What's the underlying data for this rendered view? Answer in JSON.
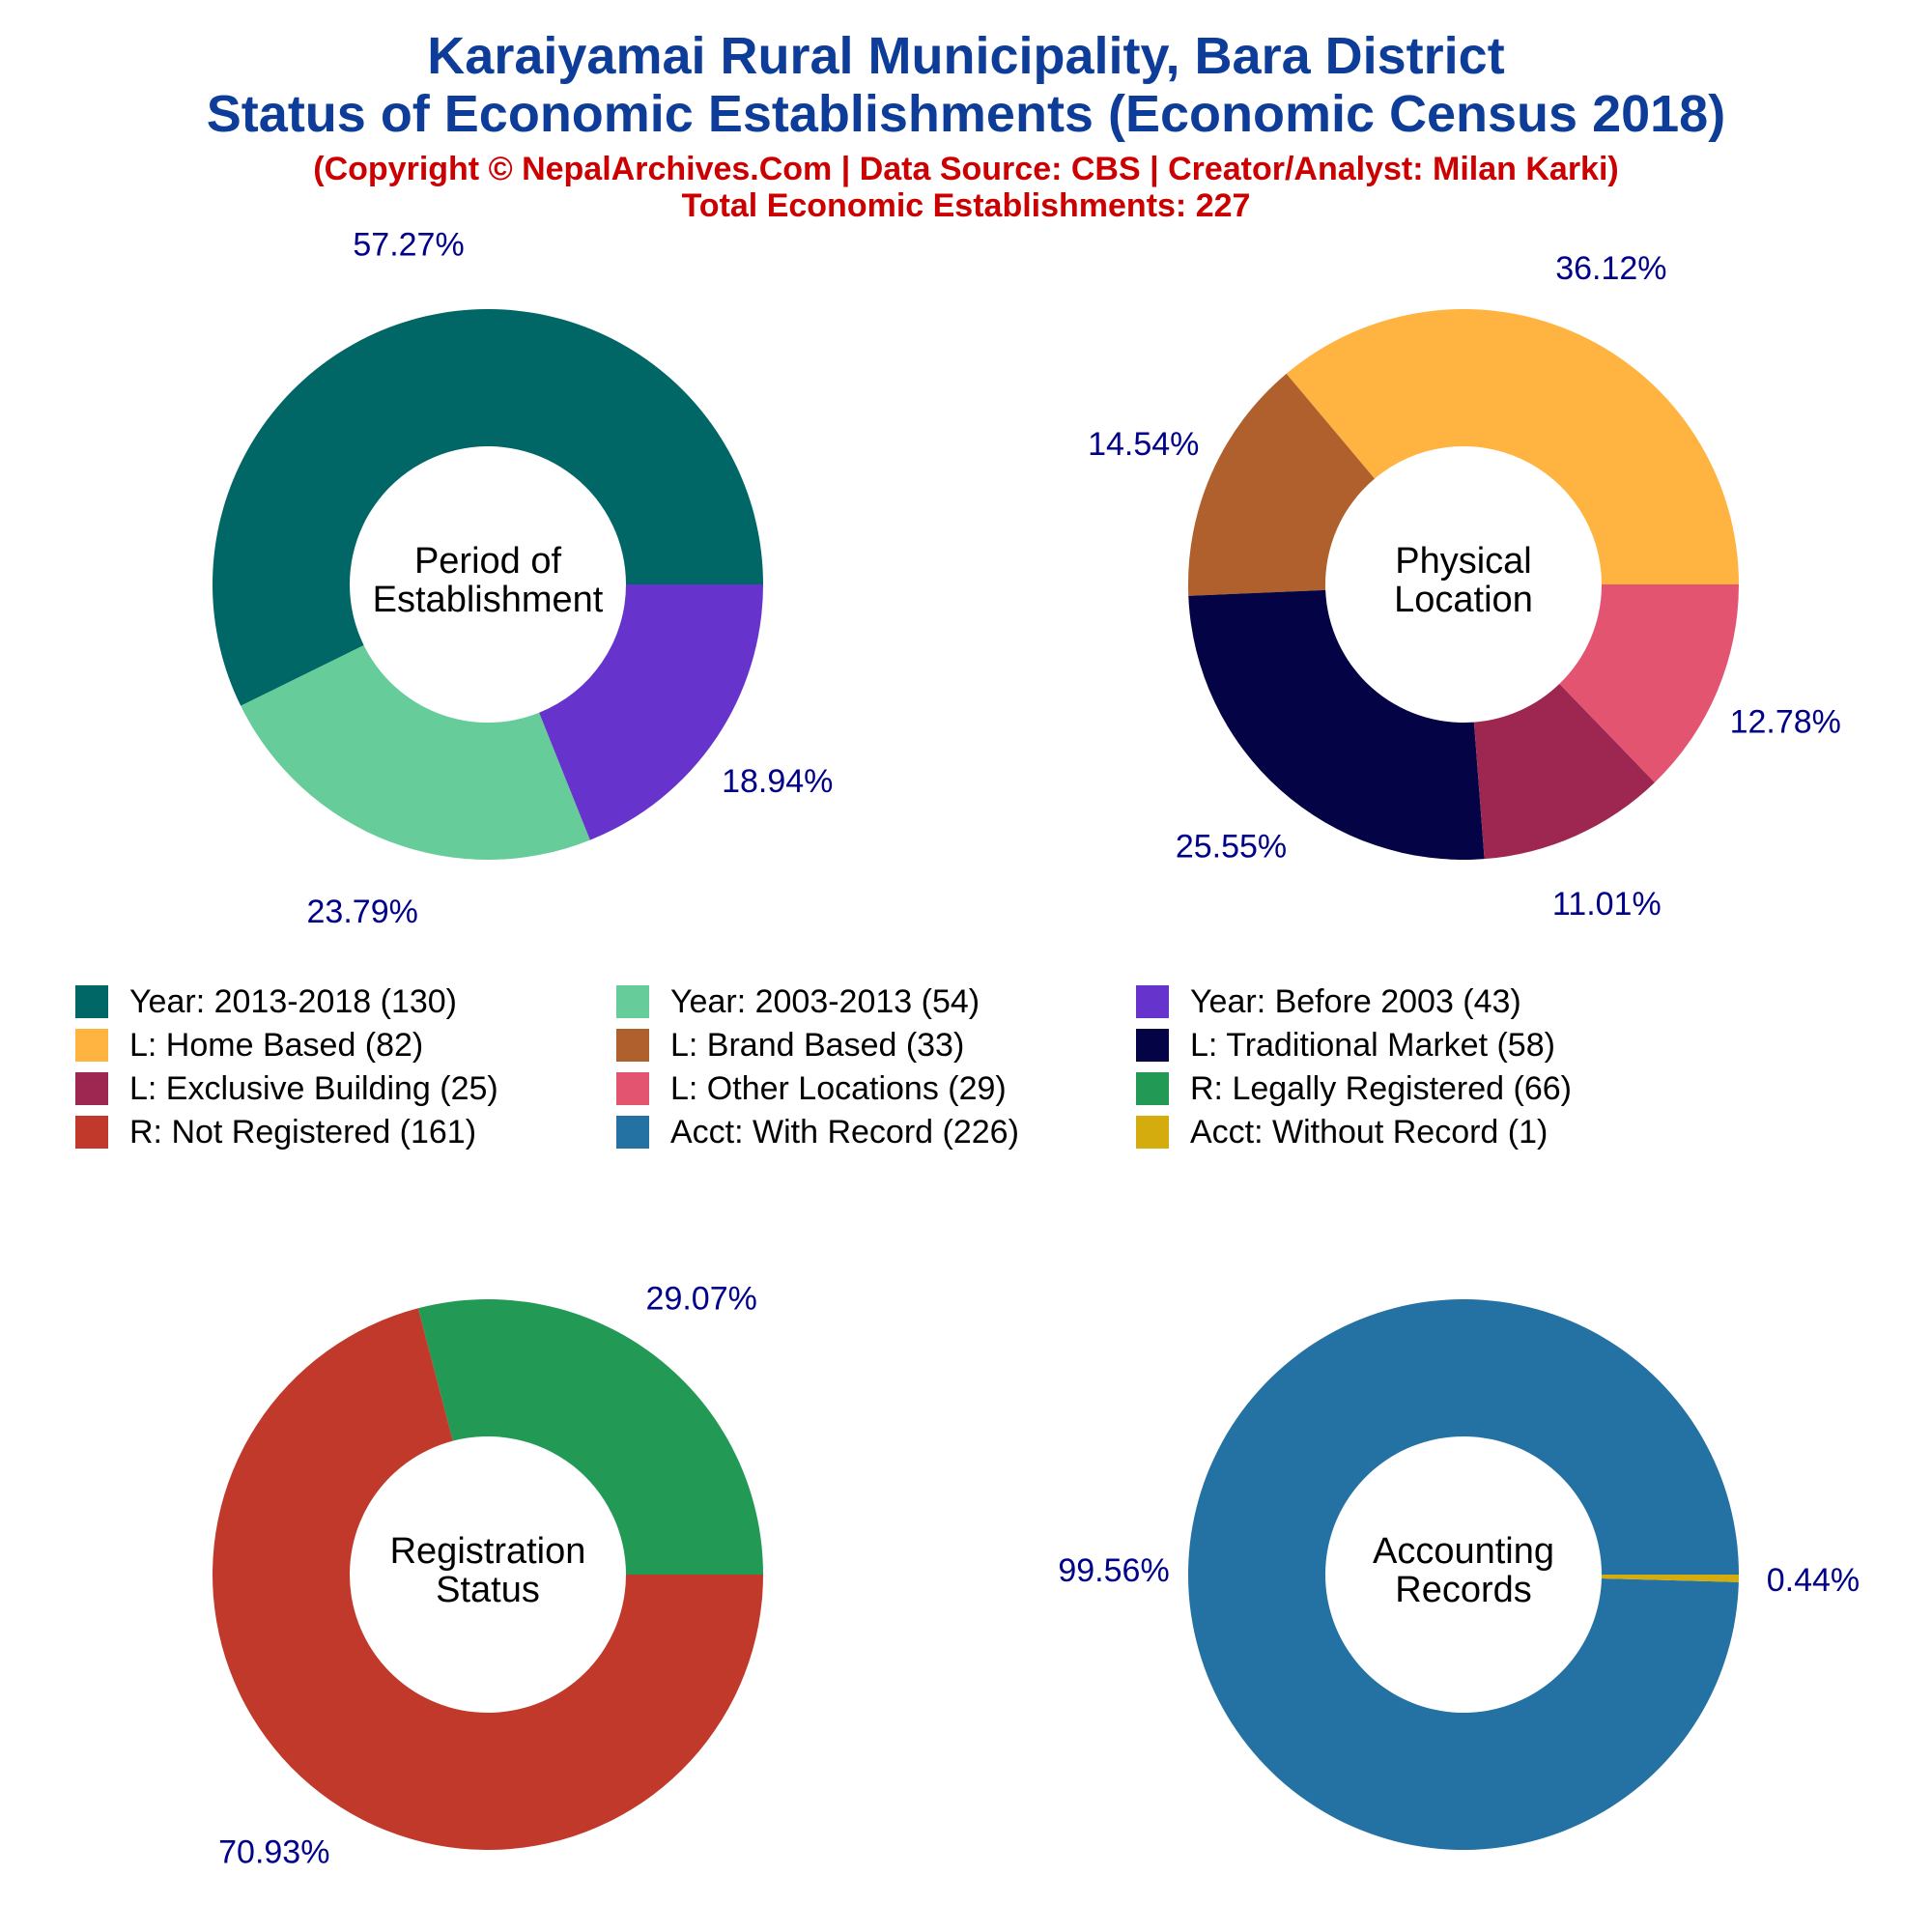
{
  "header": {
    "title_line1": "Karaiyamai Rural Municipality, Bara District",
    "title_line2": "Status of Economic Establishments (Economic Census 2018)",
    "copyright": "(Copyright © NepalArchives.Com | Data Source: CBS | Creator/Analyst: Milan Karki)",
    "total": "Total Economic Establishments: 227"
  },
  "chart_data": [
    {
      "type": "pie",
      "center_label": [
        "Period of",
        "Establishment"
      ],
      "slices": [
        {
          "label": "Year: 2013-2018",
          "value": 130,
          "percent_label": "57.27%",
          "color": "#006666"
        },
        {
          "label": "Year: 2003-2013",
          "value": 54,
          "percent_label": "23.79%",
          "color": "#66cc99"
        },
        {
          "label": "Year: Before 2003",
          "value": 43,
          "percent_label": "18.94%",
          "color": "#6633cc"
        }
      ]
    },
    {
      "type": "pie",
      "center_label": [
        "Physical",
        "Location"
      ],
      "slices": [
        {
          "label": "L: Home Based",
          "value": 82,
          "percent_label": "36.12%",
          "color": "#ffb340"
        },
        {
          "label": "L: Brand Based",
          "value": 33,
          "percent_label": "14.54%",
          "color": "#b0602c"
        },
        {
          "label": "L: Traditional Market",
          "value": 58,
          "percent_label": "25.55%",
          "color": "#030345"
        },
        {
          "label": "L: Exclusive Building",
          "value": 25,
          "percent_label": "11.01%",
          "color": "#9e2752"
        },
        {
          "label": "L: Other Locations",
          "value": 29,
          "percent_label": "12.78%",
          "color": "#e35470"
        }
      ]
    },
    {
      "type": "pie",
      "center_label": [
        "Registration",
        "Status"
      ],
      "slices": [
        {
          "label": "R: Legally Registered",
          "value": 66,
          "percent_label": "29.07%",
          "color": "#229955"
        },
        {
          "label": "R: Not Registered",
          "value": 161,
          "percent_label": "70.93%",
          "color": "#c0392b"
        }
      ]
    },
    {
      "type": "pie",
      "center_label": [
        "Accounting",
        "Records"
      ],
      "slices": [
        {
          "label": "Acct: With Record",
          "value": 226,
          "percent_label": "99.56%",
          "color": "#2471a3"
        },
        {
          "label": "Acct: Without Record",
          "value": 1,
          "percent_label": "0.44%",
          "color": "#d4ac0d"
        }
      ]
    }
  ],
  "legend": [
    {
      "text": "Year: 2013-2018 (130)",
      "color": "#006666"
    },
    {
      "text": "Year: 2003-2013 (54)",
      "color": "#66cc99"
    },
    {
      "text": "Year: Before 2003 (43)",
      "color": "#6633cc"
    },
    {
      "text": "L: Home Based (82)",
      "color": "#ffb340"
    },
    {
      "text": "L: Brand Based (33)",
      "color": "#b0602c"
    },
    {
      "text": "L: Traditional Market (58)",
      "color": "#030345"
    },
    {
      "text": "L: Exclusive Building (25)",
      "color": "#9e2752"
    },
    {
      "text": "L: Other Locations (29)",
      "color": "#e35470"
    },
    {
      "text": "R: Legally Registered (66)",
      "color": "#229955"
    },
    {
      "text": "R: Not Registered (161)",
      "color": "#c0392b"
    },
    {
      "text": "Acct: With Record (226)",
      "color": "#2471a3"
    },
    {
      "text": "Acct: Without Record (1)",
      "color": "#d4ac0d"
    }
  ],
  "colors": {
    "title": "#0d3d99",
    "subtitle": "#cc0000",
    "percent_label": "#00008b"
  }
}
